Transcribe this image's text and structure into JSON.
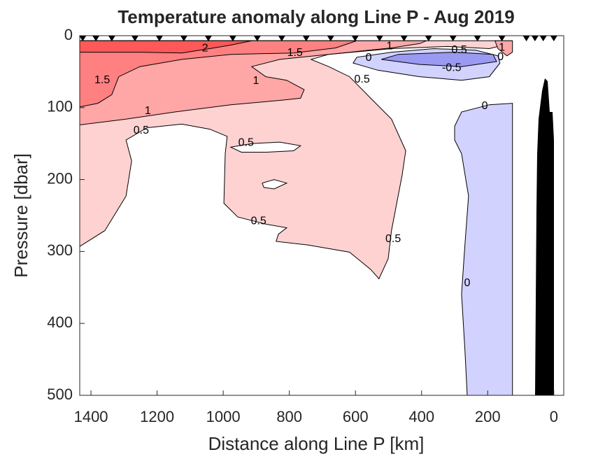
{
  "chart_data": {
    "type": "contour",
    "title": "Temperature anomaly along Line P - Aug 2019",
    "xlabel": "Distance along Line P [km]",
    "ylabel": "Pressure [dbar]",
    "xlim": [
      1434,
      -30
    ],
    "ylim": [
      500,
      0
    ],
    "xticks": [
      1400,
      1200,
      1000,
      800,
      600,
      400,
      200,
      0
    ],
    "yticks": [
      0,
      100,
      200,
      300,
      400,
      500
    ],
    "stations": [
      1425,
      1385,
      1337,
      1267,
      1193,
      1119,
      1045,
      971,
      897,
      823,
      749,
      675,
      601,
      527,
      453,
      379,
      305,
      231,
      157,
      83,
      57,
      32,
      0
    ],
    "regions": [
      {
        "level": 0.5,
        "color": "#ffd2d2",
        "x": [
          1434,
          1358,
          1294,
          1277,
          1294,
          1231,
          1125,
          1041,
          988,
          994,
          998,
          956,
          871,
          808,
          833,
          840,
          744,
          618,
          554,
          529,
          501,
          491,
          459,
          448,
          491,
          554,
          618,
          681,
          734,
          681,
          491,
          321,
          195,
          152,
          125,
          1434
        ],
        "y": [
          293,
          271,
          223,
          174,
          145,
          128,
          123,
          130,
          140,
          164,
          233,
          252,
          262,
          267,
          276,
          286,
          291,
          301,
          325,
          338,
          310,
          271,
          194,
          160,
          116,
          87,
          57,
          43,
          33,
          26,
          18,
          15,
          18,
          13,
          7,
          7
        ]
      },
      {
        "level": 0,
        "color": "#ffffff",
        "x": [
          977,
          914,
          829,
          766,
          787,
          871,
          945
        ],
        "y": [
          155,
          150,
          148,
          153,
          160,
          162,
          162
        ]
      },
      {
        "level": 0,
        "color": "#ffffff",
        "x": [
          882,
          846,
          808,
          846,
          877
        ],
        "y": [
          205,
          200,
          205,
          213,
          211
        ]
      },
      {
        "level": -0.5,
        "color": "#d2d2ff",
        "x": [
          300,
          279,
          195,
          125,
          125,
          262,
          269,
          279,
          269,
          258,
          279,
          300
        ],
        "y": [
          126,
          106,
          96,
          94,
          500,
          500,
          437,
          359,
          291,
          223,
          164,
          145
        ]
      },
      {
        "level": -0.5,
        "color": "#d2d2ff",
        "x": [
          607,
          533,
          406,
          279,
          195,
          163,
          169,
          237,
          364,
          491,
          596
        ],
        "y": [
          38,
          48,
          57,
          62,
          57,
          38,
          28,
          20,
          18,
          23,
          30
        ]
      },
      {
        "level": -1,
        "color": "#9a9af2",
        "x": [
          522,
          406,
          279,
          173,
          184,
          300,
          470
        ],
        "y": [
          33,
          40,
          43,
          36,
          26,
          23,
          26
        ]
      },
      {
        "level": 1,
        "color": "#ffa6a6",
        "x": [
          1434,
          1294,
          1146,
          977,
          829,
          766,
          755,
          808,
          871,
          914,
          829,
          681,
          491,
          406,
          385,
          1434
        ],
        "y": [
          124,
          116,
          106,
          96,
          90,
          87,
          75,
          62,
          57,
          43,
          33,
          26,
          17,
          11,
          7,
          7
        ]
      },
      {
        "level": 1,
        "color": "#ffa6a6",
        "x": [
          178,
          169,
          142,
          125,
          125
        ],
        "y": [
          7,
          18,
          28,
          23,
          7
        ]
      },
      {
        "level": 1.5,
        "color": "#ff8080",
        "x": [
          1434,
          1379,
          1337,
          1316,
          1252,
          1125,
          977,
          787,
          660,
          596,
          1434
        ],
        "y": [
          99,
          94,
          82,
          57,
          43,
          33,
          26,
          24,
          17,
          7,
          7
        ]
      },
      {
        "level": 2,
        "color": "#ff5858",
        "x": [
          1434,
          1434,
          1252,
          1125,
          1041,
          977,
          914
        ],
        "y": [
          7,
          23,
          23,
          24,
          18,
          13,
          7
        ]
      }
    ],
    "contour_labels": [
      {
        "value": 2,
        "x": 1055,
        "y": 18
      },
      {
        "value": 1.5,
        "x": 783,
        "y": 24
      },
      {
        "value": 1,
        "x": 497,
        "y": 15
      },
      {
        "value": 0.5,
        "x": 286,
        "y": 20
      },
      {
        "value": 1,
        "x": 157,
        "y": 17
      },
      {
        "value": 0,
        "x": 161,
        "y": 30
      },
      {
        "value": 0,
        "x": 560,
        "y": 31
      },
      {
        "value": -0.5,
        "x": 309,
        "y": 45
      },
      {
        "value": 1.5,
        "x": 1366,
        "y": 62
      },
      {
        "value": 1,
        "x": 901,
        "y": 63
      },
      {
        "value": 0.5,
        "x": 580,
        "y": 61
      },
      {
        "value": 1,
        "x": 1228,
        "y": 105
      },
      {
        "value": 0.5,
        "x": 1248,
        "y": 132
      },
      {
        "value": 0,
        "x": 209,
        "y": 98
      },
      {
        "value": 0.5,
        "x": 931,
        "y": 149
      },
      {
        "value": 0.5,
        "x": 893,
        "y": 258
      },
      {
        "value": 0.5,
        "x": 486,
        "y": 283
      },
      {
        "value": 0,
        "x": 262,
        "y": 344
      }
    ]
  }
}
